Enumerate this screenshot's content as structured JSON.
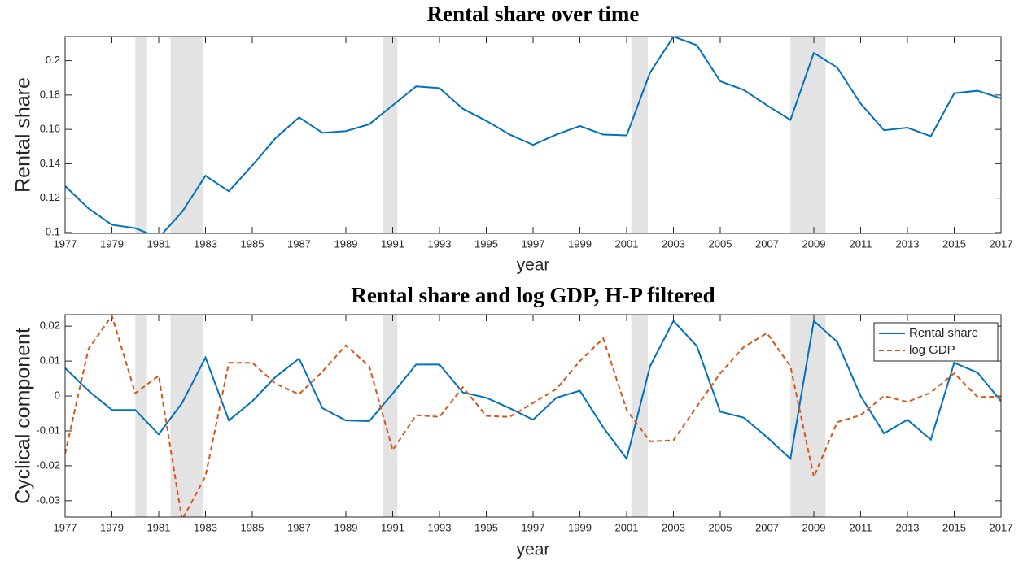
{
  "chart_data": [
    {
      "type": "line",
      "title": "Rental share over time",
      "xlabel": "year",
      "ylabel": "Rental share",
      "x": [
        1977,
        1978,
        1979,
        1980,
        1981,
        1982,
        1983,
        1984,
        1985,
        1986,
        1987,
        1988,
        1989,
        1990,
        1991,
        1992,
        1993,
        1994,
        1995,
        1996,
        1997,
        1998,
        1999,
        2000,
        2001,
        2002,
        2003,
        2004,
        2005,
        2006,
        2007,
        2008,
        2009,
        2010,
        2011,
        2012,
        2013,
        2014,
        2015,
        2016,
        2017
      ],
      "values": [
        0.127,
        0.114,
        0.1045,
        0.1025,
        0.097,
        0.112,
        0.133,
        0.124,
        0.139,
        0.155,
        0.167,
        0.158,
        0.159,
        0.163,
        0.174,
        0.185,
        0.184,
        0.172,
        0.165,
        0.157,
        0.151,
        0.157,
        0.162,
        0.157,
        0.1565,
        0.193,
        0.214,
        0.209,
        0.188,
        0.183,
        0.174,
        0.1655,
        0.2045,
        0.196,
        0.175,
        0.1595,
        0.161,
        0.156,
        0.181,
        0.1825,
        0.178
      ],
      "color": "#0072bd",
      "shaded_regions": [
        [
          1980,
          1980.5
        ],
        [
          1981.5,
          1982.9
        ],
        [
          1990.6,
          1991.2
        ],
        [
          2001.2,
          2001.9
        ],
        [
          2008,
          2009.5
        ]
      ],
      "xlim": [
        1977,
        2017
      ],
      "xticks": [
        1977,
        1979,
        1981,
        1983,
        1985,
        1987,
        1989,
        1991,
        1993,
        1995,
        1997,
        1999,
        2001,
        2003,
        2005,
        2007,
        2009,
        2011,
        2013,
        2015,
        2017
      ],
      "ylim": [
        0.0995,
        0.214
      ],
      "yticks": [
        0.1,
        0.12,
        0.14,
        0.16,
        0.18,
        0.2
      ]
    },
    {
      "type": "line",
      "title": "Rental share and log GDP, H-P filtered",
      "xlabel": "year",
      "ylabel": "Cyclical component",
      "x": [
        1977,
        1978,
        1979,
        1980,
        1981,
        1982,
        1983,
        1984,
        1985,
        1986,
        1987,
        1988,
        1989,
        1990,
        1991,
        1992,
        1993,
        1994,
        1995,
        1996,
        1997,
        1998,
        1999,
        2000,
        2001,
        2002,
        2003,
        2004,
        2005,
        2006,
        2007,
        2008,
        2009,
        2010,
        2011,
        2012,
        2013,
        2014,
        2015,
        2016,
        2017
      ],
      "series": [
        {
          "name": "Rental share",
          "color": "#0072bd",
          "line_style": "solid",
          "values": [
            0.008,
            0.0015,
            -0.004,
            -0.004,
            -0.011,
            -0.002,
            0.011,
            -0.007,
            -0.0015,
            0.0055,
            0.0107,
            -0.0035,
            -0.007,
            -0.0072,
            0.0007,
            0.009,
            0.009,
            0.001,
            -0.0005,
            -0.0035,
            -0.0068,
            -0.0005,
            0.0015,
            -0.009,
            -0.018,
            0.0085,
            0.0215,
            0.0143,
            -0.0045,
            -0.0062,
            -0.0118,
            -0.018,
            0.0215,
            0.0155,
            0.0,
            -0.0107,
            -0.0068,
            -0.0125,
            0.0095,
            0.0067,
            -0.0015
          ]
        },
        {
          "name": "log GDP",
          "color": "#d95319",
          "line_style": "dashed",
          "values": [
            -0.0165,
            0.0135,
            0.023,
            0.0008,
            0.0058,
            -0.0355,
            -0.023,
            0.0095,
            0.0095,
            0.0035,
            0.0005,
            0.007,
            0.0145,
            0.0085,
            -0.0155,
            -0.0055,
            -0.006,
            0.0025,
            -0.0057,
            -0.006,
            -0.002,
            0.002,
            0.01,
            0.0165,
            -0.004,
            -0.013,
            -0.0127,
            -0.003,
            0.0065,
            0.014,
            0.018,
            0.0085,
            -0.0232,
            -0.0075,
            -0.0055,
            0.0,
            -0.0017,
            0.001,
            0.0065,
            -0.0003,
            -0.0002
          ]
        }
      ],
      "legend": "northeast",
      "shaded_regions": [
        [
          1980,
          1980.5
        ],
        [
          1981.5,
          1982.9
        ],
        [
          1990.6,
          1991.2
        ],
        [
          2001.2,
          2001.9
        ],
        [
          2008,
          2009.5
        ]
      ],
      "xlim": [
        1977,
        2017
      ],
      "xticks": [
        1977,
        1979,
        1981,
        1983,
        1985,
        1987,
        1989,
        1991,
        1993,
        1995,
        1997,
        1999,
        2001,
        2003,
        2005,
        2007,
        2009,
        2011,
        2013,
        2015,
        2017
      ],
      "ylim": [
        -0.0347,
        0.0233
      ],
      "yticks": [
        -0.03,
        -0.02,
        -0.01,
        0,
        0.01,
        0.02
      ]
    }
  ]
}
